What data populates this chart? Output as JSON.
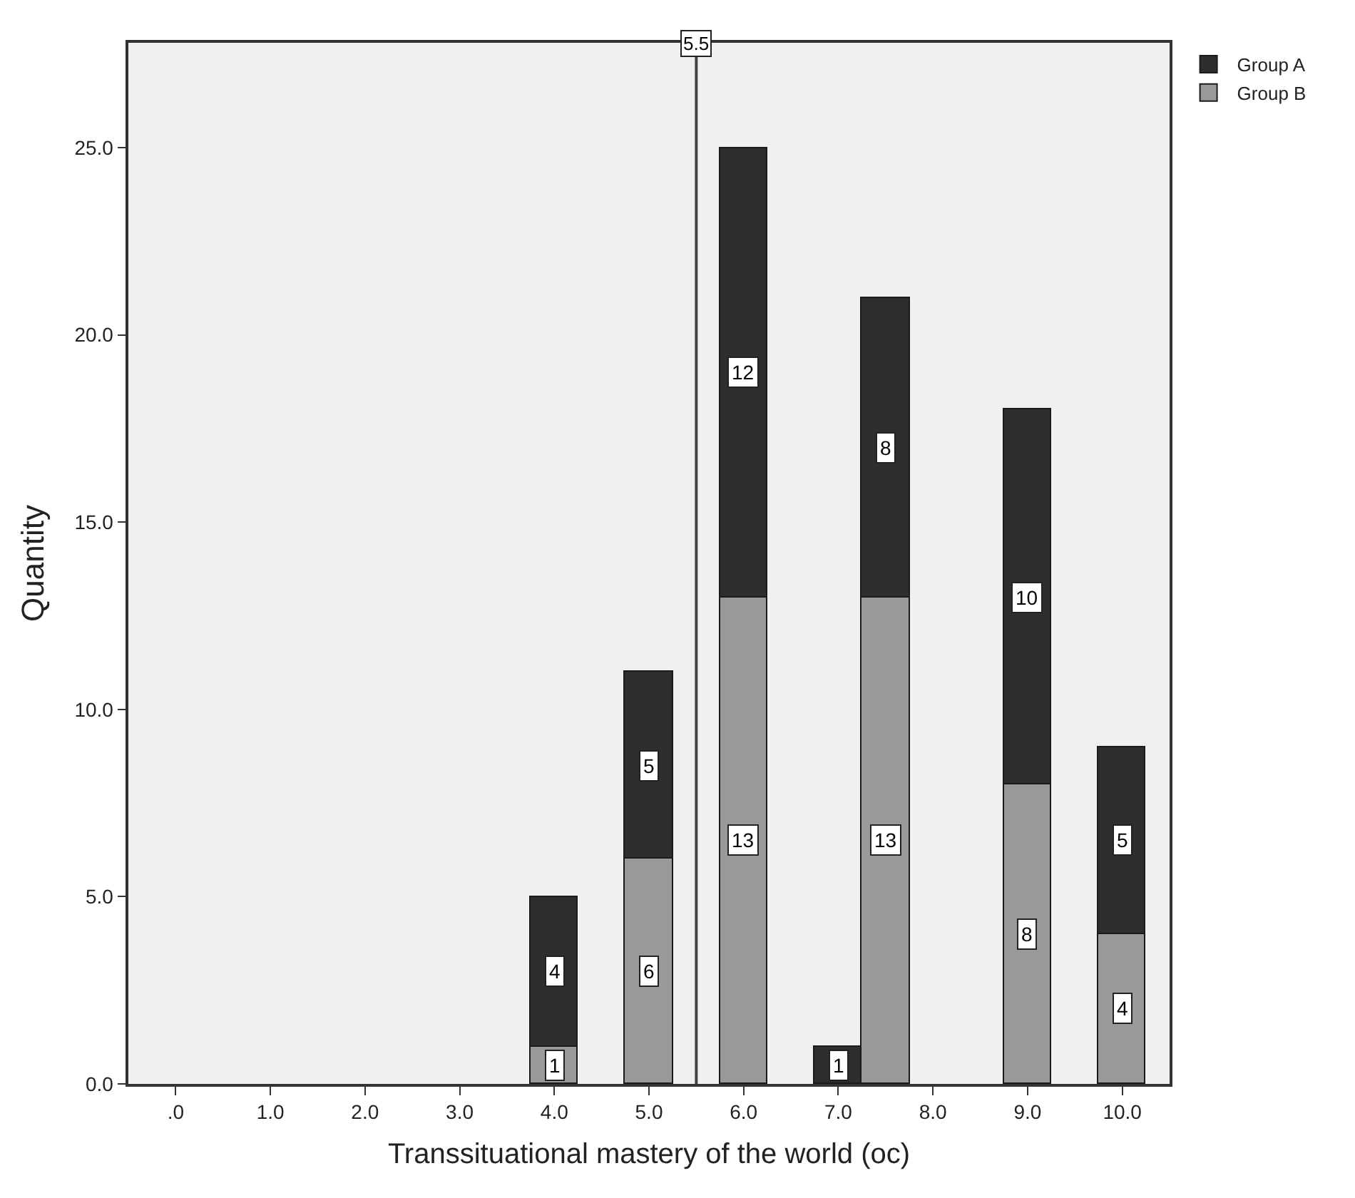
{
  "chart_data": {
    "type": "bar",
    "stacked": true,
    "xlabel": "Transsituational mastery of the world (oc)",
    "ylabel": "Quantity",
    "x": [
      4,
      5,
      6,
      7,
      7.5,
      9,
      10
    ],
    "series": [
      {
        "name": "Group B",
        "color": "#999999",
        "values": [
          1,
          6,
          13,
          null,
          13,
          8,
          4
        ]
      },
      {
        "name": "Group A",
        "color": "#2e2e2e",
        "values": [
          4,
          5,
          12,
          1,
          8,
          10,
          5
        ]
      }
    ],
    "xlim": [
      -0.5,
      10.5
    ],
    "xticks": [
      {
        "value": 0,
        "label": ".0"
      },
      {
        "value": 1,
        "label": "1.0"
      },
      {
        "value": 2,
        "label": "2.0"
      },
      {
        "value": 3,
        "label": "3.0"
      },
      {
        "value": 4,
        "label": "4.0"
      },
      {
        "value": 5,
        "label": "5.0"
      },
      {
        "value": 6,
        "label": "6.0"
      },
      {
        "value": 7,
        "label": "7.0"
      },
      {
        "value": 8,
        "label": "8.0"
      },
      {
        "value": 9,
        "label": "9.0"
      },
      {
        "value": 10,
        "label": "10.0"
      }
    ],
    "ylim": [
      0,
      27.8
    ],
    "yticks": [
      {
        "value": 0,
        "label": "0.0"
      },
      {
        "value": 5,
        "label": "5.0"
      },
      {
        "value": 10,
        "label": "10.0"
      },
      {
        "value": 15,
        "label": "15.0"
      },
      {
        "value": 20,
        "label": "20.0"
      },
      {
        "value": 25,
        "label": "25.0"
      }
    ],
    "ref_lines": [
      {
        "axis": "x",
        "value": 5.5,
        "label": "5.5",
        "color": "#444444"
      }
    ],
    "data_labels": true,
    "grid": false,
    "legend": "top right"
  }
}
